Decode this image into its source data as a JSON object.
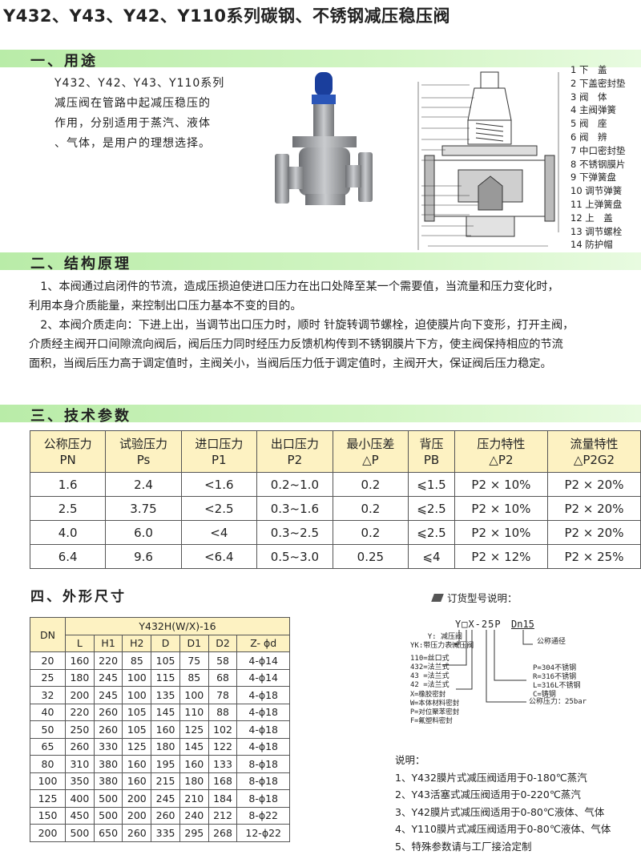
{
  "title": "Y432、Y43、Y42、Y110系列碳钢、不锈钢减压稳压阀",
  "sections": {
    "s1": "一、用途",
    "s2": "二、结构原理",
    "s3": "三、技术参数",
    "s4": "四、外形尺寸"
  },
  "intro": [
    "Y432、Y42、Y43、Y110系列",
    "减压阀在管路中起减压稳压的",
    "作用，分别适用于蒸汽、液体",
    "、气体，是用户的理想选择。"
  ],
  "parts": [
    "1 下　盖",
    "2 下盖密封垫",
    "3 阀　体",
    "4 主阀弹簧",
    "5 阀　座",
    "6 阀　辨",
    "7 中口密封垫",
    "8 不锈钢膜片",
    "9 下弹簧盘",
    "10 调节弹簧",
    "11 上弹簧盘",
    "12 上　盖",
    "13 调节螺栓",
    "14 防护帽"
  ],
  "principle": [
    "　1、本阀通过启闭件的节流，造成压损迫使进口压力在出口处降至某一个需要值，当流量和压力变化时，",
    "利用本身介质能量，来控制出口压力基本不变的目的。",
    "　2、本阀介质走向：下进上出，当调节出口压力时，顺时 针旋转调节螺栓，迫使膜片向下变形，打开主阀，",
    "介质经主阀开口间隙流向阀后，阀后压力同时经压力反馈机构传到不锈钢膜片下方，使主阀保持相应的节流",
    "面积，当阀后压力高于调定值时，主阀关小，当阀后压力低于调定值时，主阀开大，保证阀后压力稳定。"
  ],
  "spec": {
    "headers": [
      [
        "公称压力",
        "PN"
      ],
      [
        "试验压力",
        "Ps"
      ],
      [
        "进口压力",
        "P1"
      ],
      [
        "出口压力",
        "P2"
      ],
      [
        "最小压差",
        "△P"
      ],
      [
        "背压",
        "PB"
      ],
      [
        "压力特性",
        "△P2"
      ],
      [
        "流量特性",
        "△P2G2"
      ]
    ],
    "rows": [
      [
        "1.6",
        "2.4",
        "<1.6",
        "0.2~1.0",
        "0.2",
        "⩽1.5",
        "P2 × 10%",
        "P2 × 20%"
      ],
      [
        "2.5",
        "3.75",
        "<2.5",
        "0.3~1.6",
        "0.2",
        "⩽2.5",
        "P2 × 10%",
        "P2 × 20%"
      ],
      [
        "4.0",
        "6.0",
        "<4",
        "0.3~2.5",
        "0.2",
        "⩽2.5",
        "P2 × 10%",
        "P2 × 20%"
      ],
      [
        "6.4",
        "9.6",
        "<6.4",
        "0.5~3.0",
        "0.25",
        "⩽4",
        "P2 × 12%",
        "P2 × 25%"
      ]
    ]
  },
  "dim": {
    "dn": "DN",
    "model": "Y432H(W/X)-16",
    "cols": [
      "L",
      "H1",
      "H2",
      "D",
      "D1",
      "D2",
      "Z- ϕd"
    ],
    "rows": [
      [
        "20",
        "160",
        "220",
        "85",
        "105",
        "75",
        "58",
        "4-ϕ14"
      ],
      [
        "25",
        "180",
        "245",
        "100",
        "115",
        "85",
        "68",
        "4-ϕ14"
      ],
      [
        "32",
        "200",
        "245",
        "100",
        "135",
        "100",
        "78",
        "4-ϕ18"
      ],
      [
        "40",
        "220",
        "260",
        "105",
        "145",
        "110",
        "88",
        "4-ϕ18"
      ],
      [
        "50",
        "250",
        "260",
        "105",
        "160",
        "125",
        "102",
        "4-ϕ18"
      ],
      [
        "65",
        "260",
        "330",
        "125",
        "180",
        "145",
        "122",
        "4-ϕ18"
      ],
      [
        "80",
        "310",
        "380",
        "160",
        "195",
        "160",
        "133",
        "8-ϕ18"
      ],
      [
        "100",
        "350",
        "380",
        "160",
        "215",
        "180",
        "168",
        "8-ϕ18"
      ],
      [
        "125",
        "400",
        "500",
        "200",
        "245",
        "210",
        "184",
        "8-ϕ18"
      ],
      [
        "150",
        "450",
        "500",
        "200",
        "260",
        "240",
        "212",
        "8-ϕ22"
      ],
      [
        "200",
        "500",
        "650",
        "260",
        "335",
        "295",
        "268",
        "12-ϕ22"
      ]
    ]
  },
  "order": {
    "heading": "订货型号说明：",
    "code": "Y□X-25P",
    "dn": "Dn15",
    "type": [
      "Y: 减压阀",
      "YK:带压力表减压阀"
    ],
    "conn": [
      "110=丝口式",
      "432=法兰式",
      "43 =法兰式",
      "42 =法兰式"
    ],
    "seal": [
      "X=橡胶密封",
      "W=本体材料密封",
      "P=对位聚苯密封",
      "F=氟塑料密封"
    ],
    "material": [
      "P=304不锈钢",
      "R=316不锈钢",
      "L=316L不锈钢",
      "C=铸钢"
    ],
    "pressure": "公称压力：25bar",
    "dn_label": "公称通径"
  },
  "notes": {
    "heading": "说明：",
    "items": [
      "1、Y432膜片式减压阀适用于0-180℃蒸汽",
      "2、Y43活塞式减压阀适用于0-220℃蒸汽",
      "3、Y42膜片式减压阀适用于0-80℃液体、气体",
      "4、Y110膜片式减压阀适用于0-80℃液体、气体",
      "5、特殊参数请与工厂接洽定制"
    ]
  }
}
